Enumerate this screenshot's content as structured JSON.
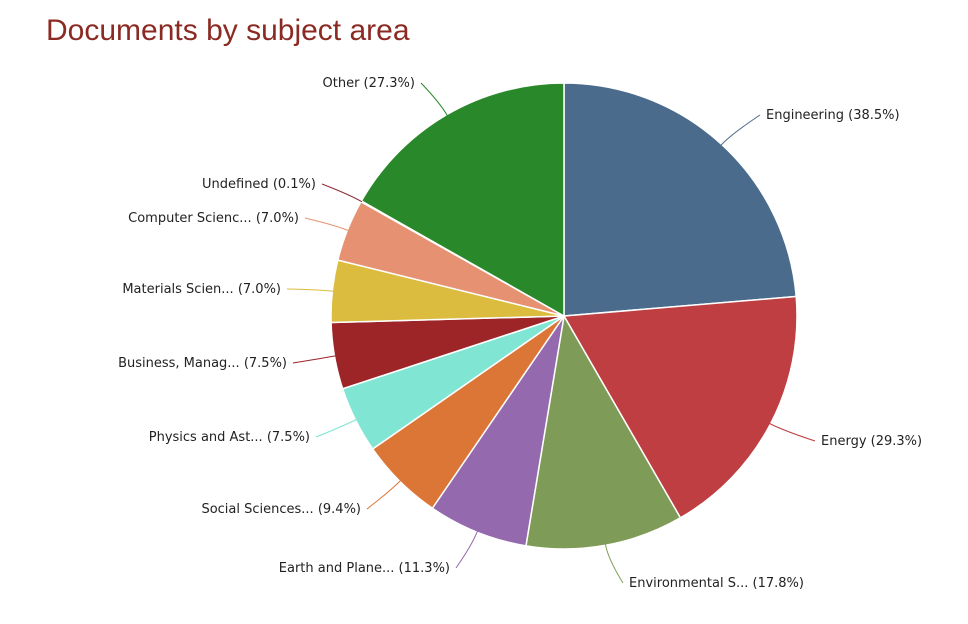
{
  "chart_data": {
    "type": "pie",
    "title": "Documents by subject area",
    "slices": [
      {
        "label": "Engineering (38.5%)",
        "value": 38.5,
        "color": "#4a6b8c"
      },
      {
        "label": "Energy (29.3%)",
        "value": 29.3,
        "color": "#be3e41"
      },
      {
        "label": "Environmental S... (17.8%)",
        "value": 17.8,
        "color": "#7f9b58"
      },
      {
        "label": "Earth and Plane... (11.3%)",
        "value": 11.3,
        "color": "#9569ad"
      },
      {
        "label": "Social Sciences... (9.4%)",
        "value": 9.4,
        "color": "#dc7637"
      },
      {
        "label": "Physics and Ast... (7.5%)",
        "value": 7.5,
        "color": "#80e6d3"
      },
      {
        "label": "Business, Manag... (7.5%)",
        "value": 7.5,
        "color": "#9d2427"
      },
      {
        "label": "Materials Scien... (7.0%)",
        "value": 7.0,
        "color": "#dbbc3f"
      },
      {
        "label": "Computer Scienc... (7.0%)",
        "value": 7.0,
        "color": "#e69272"
      },
      {
        "label": "Undefined (0.1%)",
        "value": 0.1,
        "color": "#8c2a36"
      },
      {
        "label": "Other (27.3%)",
        "value": 27.3,
        "color": "#298829"
      }
    ]
  }
}
